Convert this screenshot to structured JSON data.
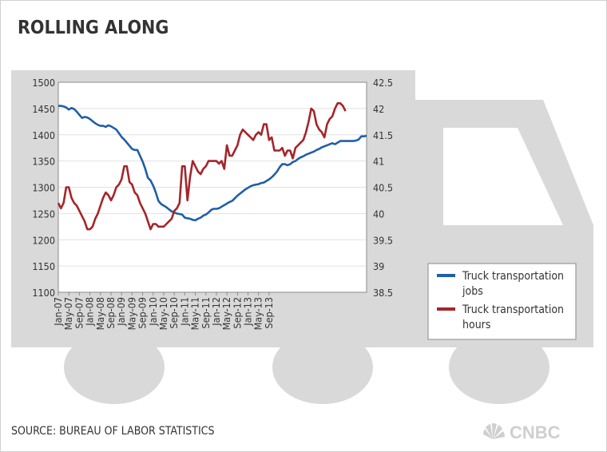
{
  "title": "ROLLING ALONG",
  "source": "SOURCE: BUREAU OF LABOR STATISTICS",
  "logo_text": "CNBC",
  "colors": {
    "jobs": "#1f5fa8",
    "hours": "#a5252a",
    "truck": "#d9d9d9",
    "grid": "#e1e1e1"
  },
  "chart_data": {
    "type": "line",
    "title": "ROLLING ALONG",
    "x_tick_labels": [
      "Jan-07",
      "May-07",
      "Sep-07",
      "Jan-08",
      "May-08",
      "Sep-08",
      "Jan-09",
      "May-09",
      "Sep-09",
      "Jan-10",
      "May-10",
      "Sep-10",
      "Jan-11",
      "May-11",
      "Sep-11",
      "Jan-12",
      "May-12",
      "Sep-12",
      "Jan-13",
      "May-13",
      "Sep-13"
    ],
    "x_start": "Jan-07",
    "x_end": "Nov-13",
    "y_left": {
      "ylim": [
        1100,
        1500
      ],
      "ticks": [
        1100,
        1150,
        1200,
        1250,
        1300,
        1350,
        1400,
        1450,
        1500
      ]
    },
    "y_right": {
      "ylim": [
        38.5,
        42.5
      ],
      "ticks": [
        "38.5",
        "39",
        "39.5",
        "40",
        "40.5",
        "41",
        "41.5",
        "42",
        "42.5"
      ]
    },
    "grid": "horizontal",
    "legend_position": "right",
    "series": [
      {
        "name": "Truck transportation jobs",
        "axis": "left",
        "values": [
          1455,
          1455,
          1454,
          1452,
          1448,
          1451,
          1449,
          1444,
          1438,
          1432,
          1434,
          1433,
          1430,
          1426,
          1422,
          1419,
          1417,
          1417,
          1415,
          1418,
          1416,
          1413,
          1410,
          1403,
          1396,
          1391,
          1385,
          1379,
          1373,
          1371,
          1371,
          1360,
          1349,
          1335,
          1318,
          1313,
          1303,
          1290,
          1274,
          1268,
          1265,
          1262,
          1258,
          1254,
          1252,
          1250,
          1249,
          1248,
          1242,
          1241,
          1240,
          1238,
          1237,
          1240,
          1242,
          1246,
          1248,
          1252,
          1257,
          1259,
          1259,
          1260,
          1263,
          1266,
          1269,
          1272,
          1274,
          1279,
          1284,
          1288,
          1292,
          1296,
          1299,
          1302,
          1304,
          1305,
          1306,
          1308,
          1309,
          1312,
          1315,
          1319,
          1324,
          1330,
          1338,
          1344,
          1344,
          1342,
          1344,
          1348,
          1350,
          1354,
          1357,
          1359,
          1362,
          1364,
          1366,
          1368,
          1371,
          1373,
          1376,
          1378,
          1380,
          1382,
          1384,
          1382,
          1385,
          1388,
          1388,
          1388,
          1388,
          1388,
          1388,
          1389,
          1391,
          1397,
          1397,
          1398
        ]
      },
      {
        "name": "Truck transportation hours",
        "axis": "right",
        "values": [
          40.2,
          40.1,
          40.2,
          40.5,
          40.5,
          40.3,
          40.2,
          40.15,
          40.05,
          39.95,
          39.85,
          39.7,
          39.7,
          39.75,
          39.9,
          40.0,
          40.15,
          40.3,
          40.4,
          40.35,
          40.25,
          40.35,
          40.5,
          40.55,
          40.65,
          40.9,
          40.9,
          40.6,
          40.55,
          40.4,
          40.35,
          40.2,
          40.1,
          40.0,
          39.85,
          39.7,
          39.8,
          39.8,
          39.75,
          39.75,
          39.75,
          39.8,
          39.85,
          39.9,
          40.05,
          40.1,
          40.2,
          40.9,
          40.9,
          40.25,
          40.7,
          41.0,
          40.9,
          40.8,
          40.75,
          40.85,
          40.9,
          41.0,
          41.0,
          41.0,
          41.0,
          40.95,
          41.0,
          40.85,
          41.3,
          41.1,
          41.1,
          41.2,
          41.3,
          41.5,
          41.6,
          41.55,
          41.5,
          41.45,
          41.4,
          41.5,
          41.55,
          41.5,
          41.7,
          41.7,
          41.4,
          41.45,
          41.2,
          41.2,
          41.2,
          41.25,
          41.1,
          41.2,
          41.2,
          41.05,
          41.25,
          41.3,
          41.35,
          41.4,
          41.55,
          41.75,
          42.0,
          41.95,
          41.7,
          41.6,
          41.55,
          41.45,
          41.7,
          41.8,
          41.85,
          42.0,
          42.1,
          42.1,
          42.05,
          41.95
        ]
      }
    ]
  }
}
